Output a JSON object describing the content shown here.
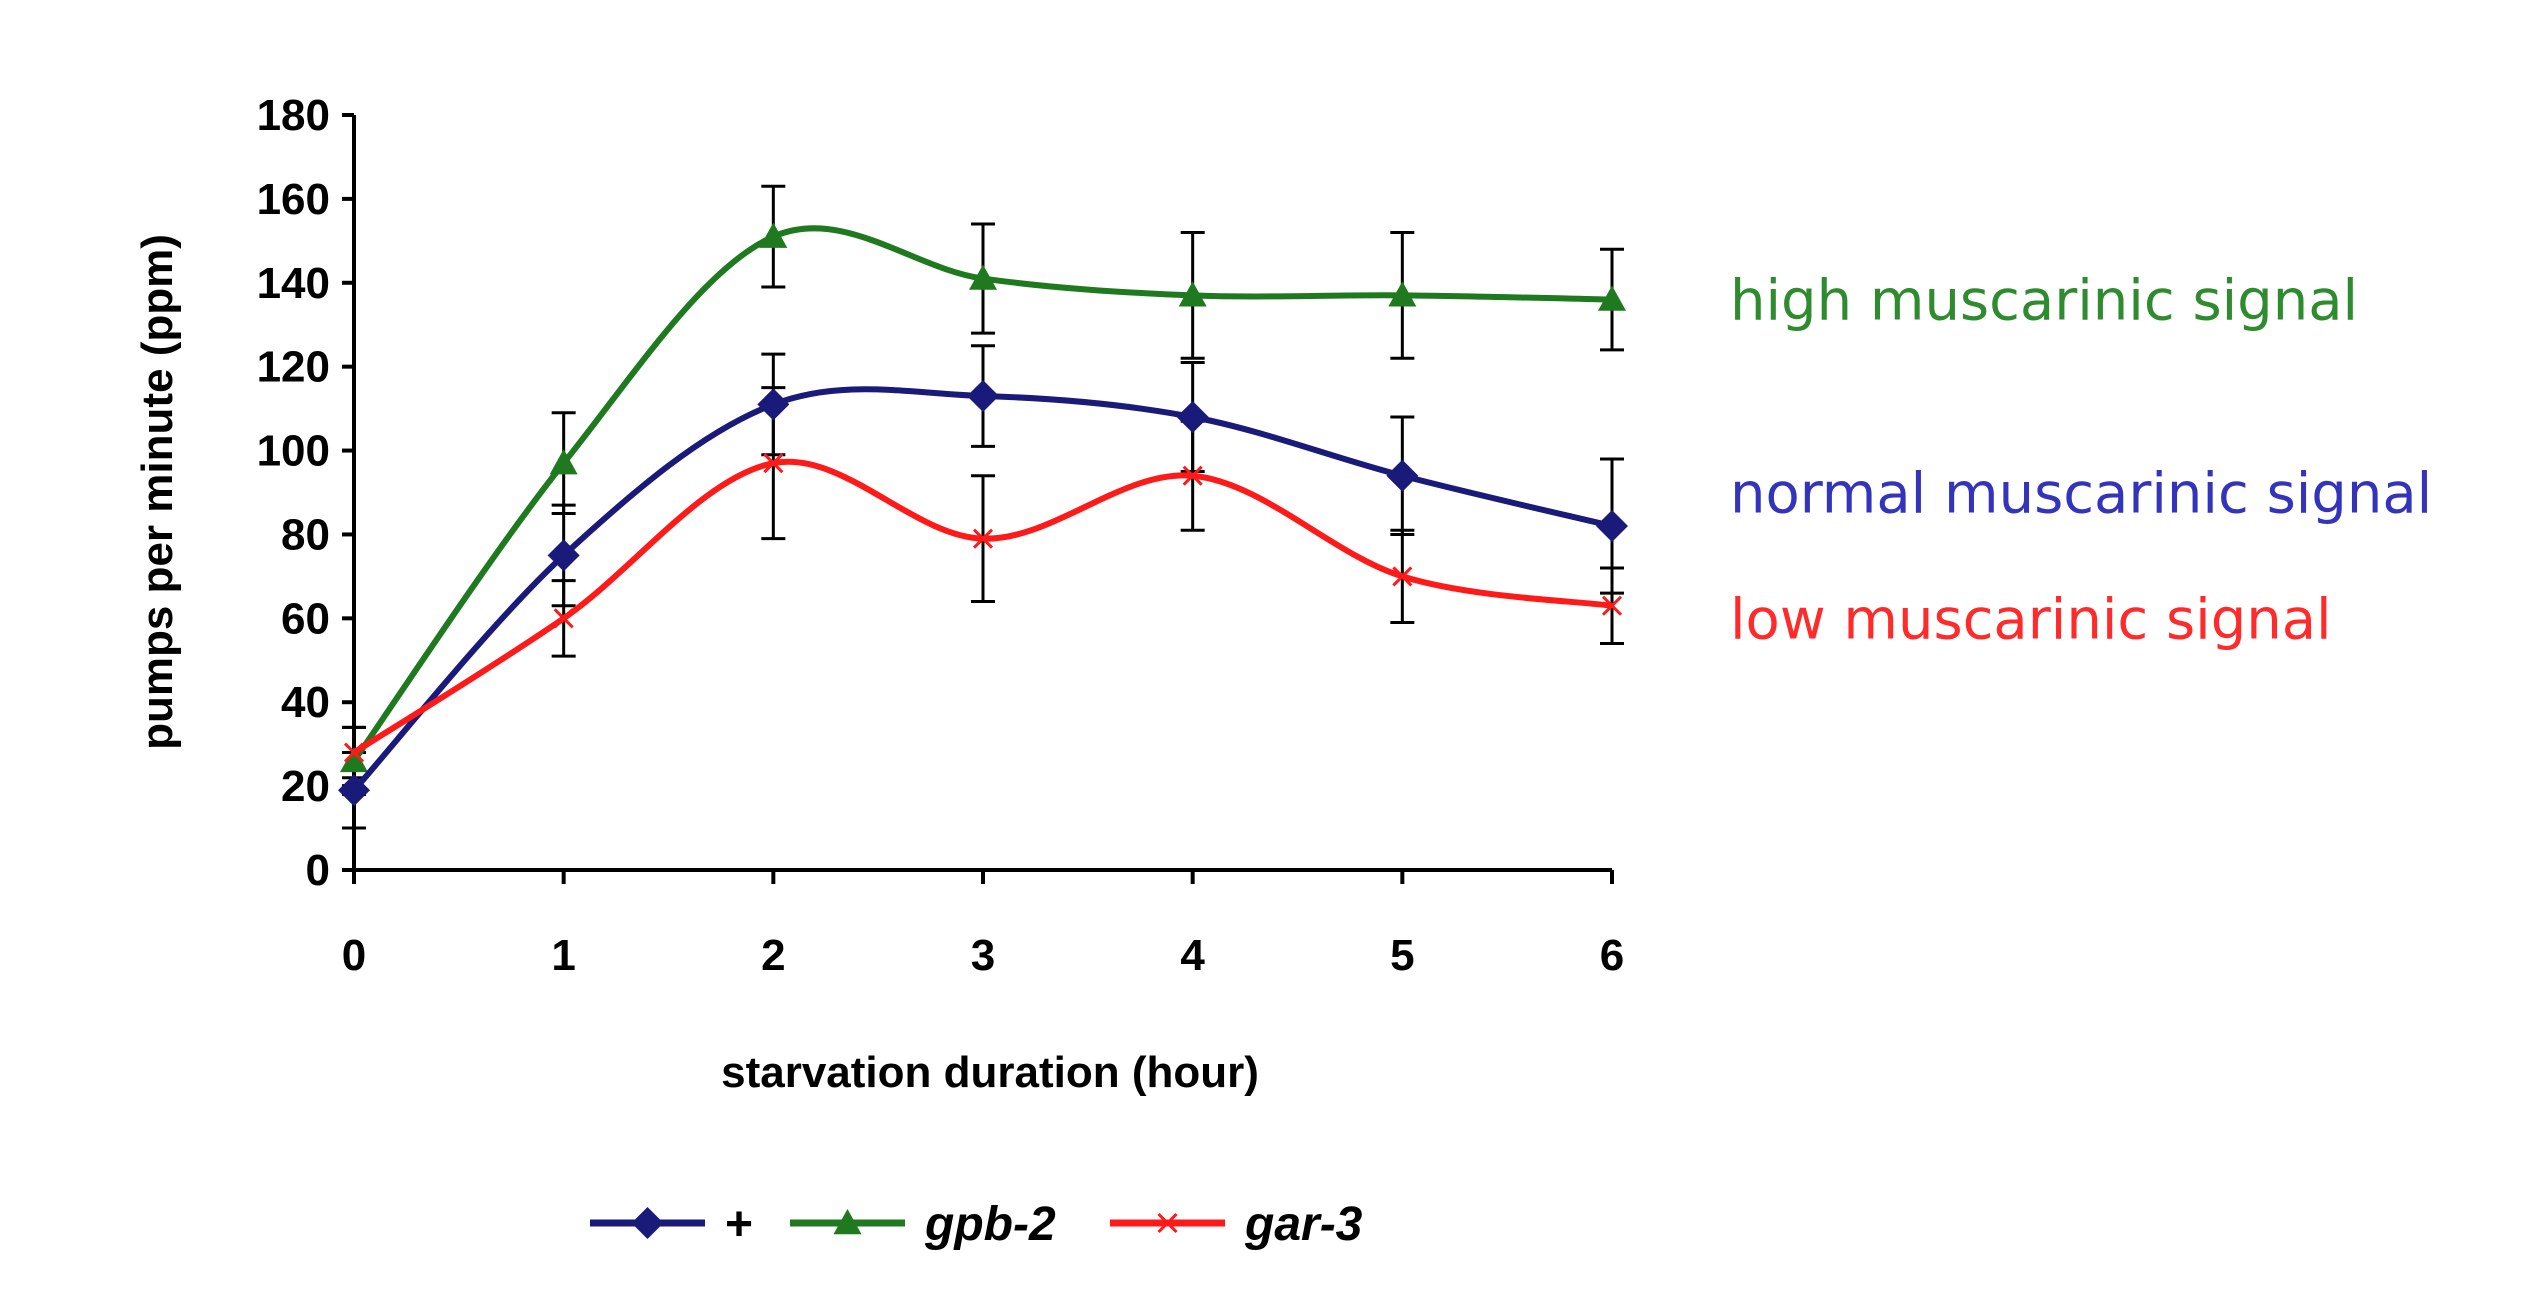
{
  "chart_data": {
    "type": "line",
    "title": "",
    "xlabel": "starvation duration (hour)",
    "ylabel": "pumps per minute (ppm)",
    "x": [
      0,
      1,
      2,
      3,
      4,
      5,
      6
    ],
    "xlim": [
      0,
      6
    ],
    "ylim": [
      0,
      180
    ],
    "yticks": [
      0,
      20,
      40,
      60,
      80,
      100,
      120,
      140,
      160,
      180
    ],
    "xticks": [
      0,
      1,
      2,
      3,
      4,
      5,
      6
    ],
    "grid": false,
    "legend_position": "bottom",
    "series": [
      {
        "name": "+",
        "color": "#1a1a7a",
        "marker": "diamond",
        "values": [
          19,
          75,
          111,
          113,
          108,
          94,
          82
        ],
        "errors": [
          9,
          12,
          12,
          12,
          13,
          14,
          16
        ]
      },
      {
        "name": "gpb-2",
        "color": "#1f7a1f",
        "marker": "triangle",
        "values": [
          26,
          97,
          151,
          141,
          137,
          137,
          136
        ],
        "errors": [
          8,
          12,
          12,
          13,
          15,
          15,
          12
        ]
      },
      {
        "name": "gar-3",
        "color": "#ff1a1a",
        "marker": "x",
        "values": [
          28,
          60,
          97,
          79,
          94,
          70,
          63
        ],
        "errors": [
          6,
          9,
          18,
          15,
          13,
          11,
          9
        ]
      }
    ],
    "annotations": [
      {
        "text": "high muscarinic signal",
        "color": "#2e8b2e",
        "y": 136
      },
      {
        "text": "normal muscarinic signal",
        "color": "#3333bb",
        "y": 90
      },
      {
        "text": "low muscarinic signal",
        "color": "#ff2a2a",
        "y": 60
      }
    ]
  }
}
